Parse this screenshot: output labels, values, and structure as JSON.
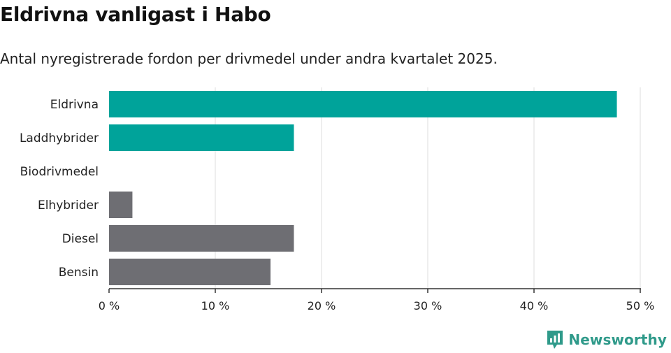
{
  "title": "Eldrivna vanligast i Habo",
  "subtitle": "Antal nyregistrerade fordon per drivmedel under andra kvartalet 2025.",
  "brand": {
    "name": "Newsworthy",
    "color": "#2f9a8a",
    "icon": "newsworthy-logo-icon"
  },
  "chart_data": {
    "type": "bar",
    "orientation": "horizontal",
    "categories": [
      "Eldrivna",
      "Laddhybrider",
      "Biodrivmedel",
      "Elhybrider",
      "Diesel",
      "Bensin"
    ],
    "values": [
      47.8,
      17.4,
      0,
      2.2,
      17.4,
      15.2
    ],
    "colors": [
      "#00a39a",
      "#00a39a",
      "#00a39a",
      "#6e6e73",
      "#6e6e73",
      "#6e6e73"
    ],
    "xlim": [
      0,
      50
    ],
    "xticks": [
      0,
      10,
      20,
      30,
      40,
      50
    ],
    "xtick_labels": [
      "0 %",
      "10 %",
      "20 %",
      "30 %",
      "40 %",
      "50 %"
    ],
    "grid": true
  }
}
